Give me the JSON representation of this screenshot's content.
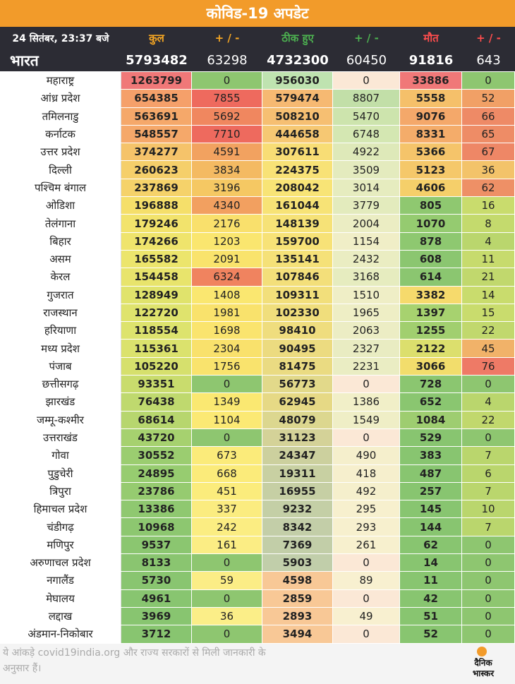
{
  "banner": "कोविड-19 अपडेट",
  "header": {
    "date": "24 सितंबर, 23:37 बजे",
    "total": "कुल",
    "delta": "+ / -",
    "recovered": "ठीक हुए",
    "rec_delta": "+ / -",
    "deaths": "मौत",
    "death_delta": "+ / -"
  },
  "nation": {
    "label": "भारत",
    "total": "5793482",
    "delta": "63298",
    "recovered": "4732300",
    "rec_delta": "60450",
    "deaths": "91816",
    "death_delta": "643"
  },
  "rows": [
    [
      "महाराष्ट्र",
      "1263799",
      "0",
      "956030",
      "0",
      "33886",
      "0"
    ],
    [
      "आंध्र प्रदेश",
      "654385",
      "7855",
      "579474",
      "8807",
      "5558",
      "52"
    ],
    [
      "तमिलनाडु",
      "563691",
      "5692",
      "508210",
      "5470",
      "9076",
      "66"
    ],
    [
      "कर्नाटक",
      "548557",
      "7710",
      "444658",
      "6748",
      "8331",
      "65"
    ],
    [
      "उत्तर प्रदेश",
      "374277",
      "4591",
      "307611",
      "4922",
      "5366",
      "67"
    ],
    [
      "दिल्ली",
      "260623",
      "3834",
      "224375",
      "3509",
      "5123",
      "36"
    ],
    [
      "पश्चिम बंगाल",
      "237869",
      "3196",
      "208042",
      "3014",
      "4606",
      "62"
    ],
    [
      "ओडिशा",
      "196888",
      "4340",
      "161044",
      "3779",
      "805",
      "16"
    ],
    [
      "तेलंगाना",
      "179246",
      "2176",
      "148139",
      "2004",
      "1070",
      "8"
    ],
    [
      "बिहार",
      "174266",
      "1203",
      "159700",
      "1154",
      "878",
      "4"
    ],
    [
      "असम",
      "165582",
      "2091",
      "135141",
      "2432",
      "608",
      "11"
    ],
    [
      "केरल",
      "154458",
      "6324",
      "107846",
      "3168",
      "614",
      "21"
    ],
    [
      "गुजरात",
      "128949",
      "1408",
      "109311",
      "1510",
      "3382",
      "14"
    ],
    [
      "राजस्थान",
      "122720",
      "1981",
      "102330",
      "1965",
      "1397",
      "15"
    ],
    [
      "हरियाणा",
      "118554",
      "1698",
      "98410",
      "2063",
      "1255",
      "22"
    ],
    [
      "मध्य प्रदेश",
      "115361",
      "2304",
      "90495",
      "2327",
      "2122",
      "45"
    ],
    [
      "पंजाब",
      "105220",
      "1756",
      "81475",
      "2231",
      "3066",
      "76"
    ],
    [
      "छत्तीसगढ़",
      "93351",
      "0",
      "56773",
      "0",
      "728",
      "0"
    ],
    [
      "झारखंड",
      "76438",
      "1349",
      "62945",
      "1386",
      "652",
      "4"
    ],
    [
      "जम्मू-कश्मीर",
      "68614",
      "1104",
      "48079",
      "1549",
      "1084",
      "22"
    ],
    [
      "उत्तराखंड",
      "43720",
      "0",
      "31123",
      "0",
      "529",
      "0"
    ],
    [
      "गोवा",
      "30552",
      "673",
      "24347",
      "490",
      "383",
      "7"
    ],
    [
      "पुडुचेरी",
      "24895",
      "668",
      "19311",
      "418",
      "487",
      "6"
    ],
    [
      "त्रिपुरा",
      "23786",
      "451",
      "16955",
      "492",
      "257",
      "7"
    ],
    [
      "हिमाचल प्रदेश",
      "13386",
      "337",
      "9232",
      "295",
      "145",
      "10"
    ],
    [
      "चंडीगढ़",
      "10968",
      "242",
      "8342",
      "293",
      "144",
      "7"
    ],
    [
      "मणिपुर",
      "9537",
      "161",
      "7369",
      "261",
      "62",
      "0"
    ],
    [
      "अरुणाचल प्रदेश",
      "8133",
      "0",
      "5903",
      "0",
      "14",
      "0"
    ],
    [
      "नगालैंड",
      "5730",
      "59",
      "4598",
      "89",
      "11",
      "0"
    ],
    [
      "मेघालय",
      "4961",
      "0",
      "2859",
      "0",
      "42",
      "0"
    ],
    [
      "लद्दाख",
      "3969",
      "36",
      "2893",
      "49",
      "51",
      "0"
    ],
    [
      "अंडमान-निकोबार",
      "3712",
      "0",
      "3494",
      "0",
      "52",
      "0"
    ]
  ],
  "colors": {
    "c1": [
      "#f07878",
      "#f5a06a",
      "#f5a86a",
      "#f5a86a",
      "#f5c36a",
      "#f5cf6a",
      "#f5d26a",
      "#f5df6a",
      "#f2e36c",
      "#efe46c",
      "#ece56c",
      "#e8e46c",
      "#e0e36c",
      "#dfe36d",
      "#dde36d",
      "#dbe26d",
      "#d6e06d",
      "#c9dc6d",
      "#bfd96e",
      "#b7d66e",
      "#a6d16f",
      "#9bcd70",
      "#97cc70",
      "#96cb70",
      "#8fc870",
      "#8dc770",
      "#8bc670",
      "#8ac570",
      "#89c570",
      "#88c570",
      "#88c570",
      "#88c570"
    ],
    "c2": [
      "#8ec670",
      "#ee6a5e",
      "#f0875f",
      "#ee6a5e",
      "#f2a260",
      "#f4ba62",
      "#f5c863",
      "#f2a060",
      "#f9e06c",
      "#fae66f",
      "#f9e36c",
      "#f0835f",
      "#fae770",
      "#f9e26c",
      "#fae46e",
      "#f9e16c",
      "#f9e36d",
      "#8ec670",
      "#fae871",
      "#fbe974",
      "#8ec670",
      "#fbeb7a",
      "#fbeb7a",
      "#fbec7c",
      "#fbec80",
      "#fbed82",
      "#fbed84",
      "#8ec670",
      "#fbed86",
      "#8ec670",
      "#fbee88",
      "#8ec670"
    ],
    "c3": [
      "#bfe3b0",
      "#f6b972",
      "#f6bf72",
      "#f6c873",
      "#f8dd75",
      "#f8e276",
      "#f8e476",
      "#f7e376",
      "#f6e277",
      "#f7e277",
      "#f5e178",
      "#f3df7a",
      "#f2df7b",
      "#f0de7c",
      "#efdd7e",
      "#ecdb80",
      "#eadb82",
      "#e2d98a",
      "#e6d985",
      "#dcd78f",
      "#d4d298",
      "#ccd09e",
      "#c8d0a2",
      "#c6cfa4",
      "#c4cfa6",
      "#c3cea8",
      "#c2cea8",
      "#c1ceaa",
      "#f8c896",
      "#f8c896",
      "#f8c896",
      "#f8c896"
    ],
    "c4": [
      "#fbe8d6",
      "#c2dfa8",
      "#cde4ad",
      "#d4e7b2",
      "#dee9b9",
      "#e4ebbe",
      "#e6ecbf",
      "#e3ebbd",
      "#ebedc3",
      "#f0eec7",
      "#eaedc2",
      "#e6ecbf",
      "#efeec6",
      "#eeeec5",
      "#ecedc4",
      "#e9ecc2",
      "#eaedc3",
      "#fbe8d6",
      "#f1efc8",
      "#efeec6",
      "#fbe8d6",
      "#f5efcc",
      "#f6efcd",
      "#f5efcc",
      "#f7f0ce",
      "#f7f0ce",
      "#f7f0ce",
      "#fbe8d6",
      "#f8f0d0",
      "#fbe8d6",
      "#f8f0d0",
      "#fbe8d6"
    ],
    "c5": [
      "#f07878",
      "#f5c06a",
      "#f4a86a",
      "#f4ac6a",
      "#f5c46a",
      "#f5c86a",
      "#f5cf6a",
      "#8fc870",
      "#95cb70",
      "#8ec870",
      "#8bc670",
      "#8bc670",
      "#f6da6c",
      "#a7d26f",
      "#a1cf6f",
      "#dcdf6d",
      "#f2dd6c",
      "#8bc670",
      "#8ac670",
      "#9ecd70",
      "#88c570",
      "#88c570",
      "#88c570",
      "#88c570",
      "#88c570",
      "#88c570",
      "#88c570",
      "#88c570",
      "#88c570",
      "#88c570",
      "#88c570",
      "#88c570"
    ],
    "c6": [
      "#8ec670",
      "#f1a066",
      "#ee8a66",
      "#ee8c66",
      "#ee8766",
      "#f3c36a",
      "#ee9066",
      "#c9dc6d",
      "#c4da6d",
      "#bad66d",
      "#c7db6d",
      "#c1d86d",
      "#c9dc6d",
      "#c9dc6d",
      "#c1d86d",
      "#f1b269",
      "#ee7a66",
      "#8ec670",
      "#bad66d",
      "#c1d86d",
      "#8ec670",
      "#bad66d",
      "#bad66d",
      "#bad66d",
      "#bad66d",
      "#bad66d",
      "#8ec670",
      "#8ec670",
      "#8ec670",
      "#8ec670",
      "#8ec670",
      "#8ec670"
    ]
  },
  "footer": {
    "note": "ये आंकड़े covid19india.org और राज्य सरकारों से मिली जानकारी के अनुसार हैं।",
    "logo_line1": "दैनिक",
    "logo_line2": "भास्कर"
  }
}
